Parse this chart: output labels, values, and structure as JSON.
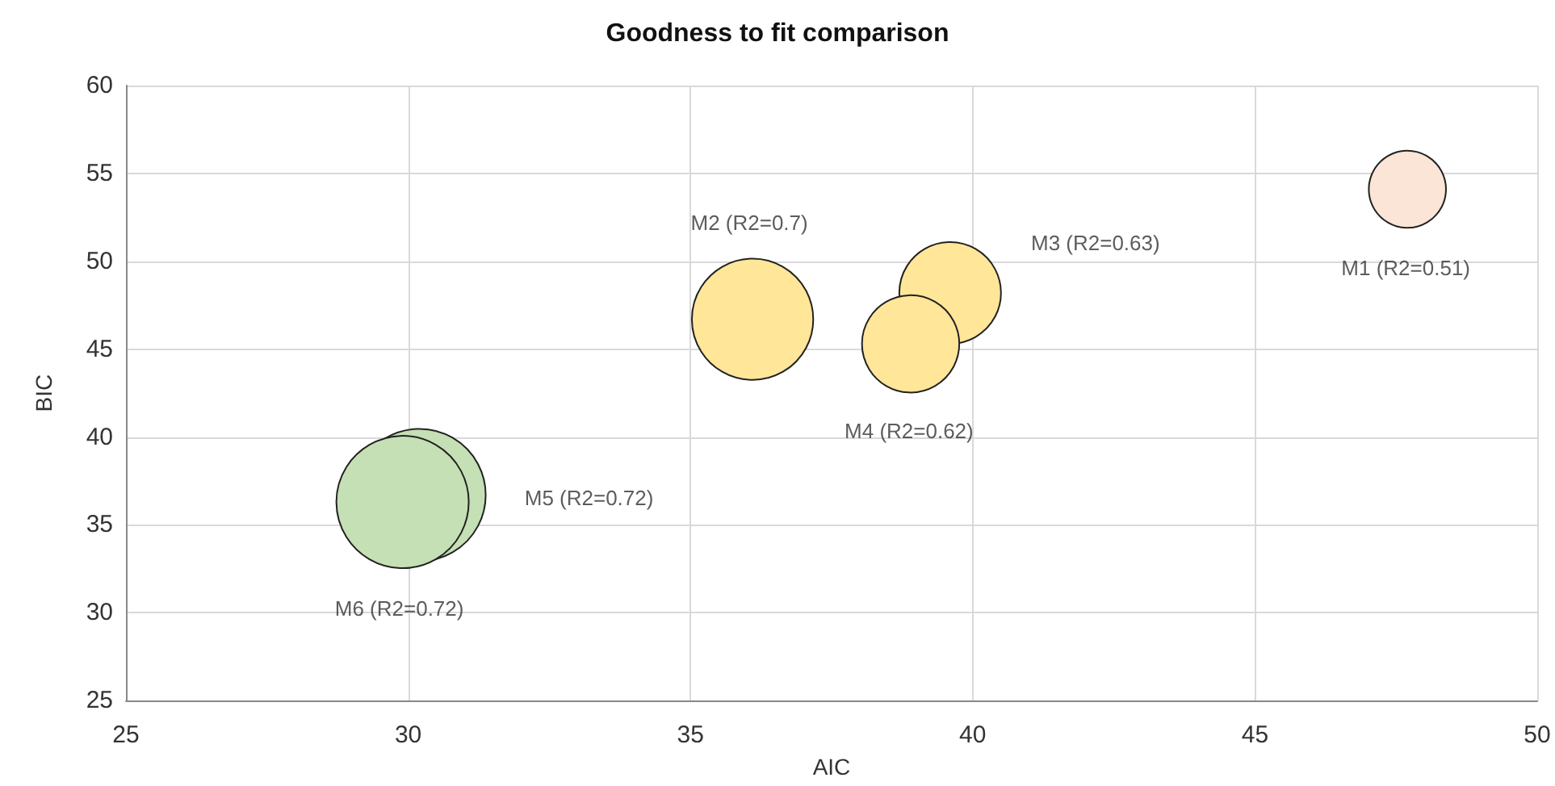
{
  "chart_data": {
    "type": "bubble",
    "title": "Goodness to fit comparison",
    "xlabel": "AIC",
    "ylabel": "BIC",
    "x": [
      47.7,
      36.1,
      39.6,
      38.9,
      30.2,
      29.9
    ],
    "values": [
      54.1,
      46.7,
      48.2,
      45.3,
      36.7,
      36.3
    ],
    "sizes": [
      0.34,
      0.84,
      0.59,
      0.54,
      1,
      1
    ],
    "colors": [
      "#fbe5d6",
      "#ffe699",
      "#ffe699",
      "#ffe699",
      "#c5e0b4",
      "#c5e0b4"
    ],
    "xlim": [
      25,
      50
    ],
    "xticks": [
      25,
      30,
      35,
      40,
      45,
      50
    ],
    "ylim": [
      25,
      60
    ],
    "yticks": [
      25,
      30,
      35,
      40,
      45,
      50,
      55,
      60
    ],
    "grid": true,
    "annotations": [
      "M1 (R2=0.51)",
      "M2 (R2=0.7)",
      "M3 (R2=0.63)",
      "M4 (R2=0.62)",
      "M5 (R2=0.72)",
      "M6 (R2=0.72)"
    ]
  }
}
